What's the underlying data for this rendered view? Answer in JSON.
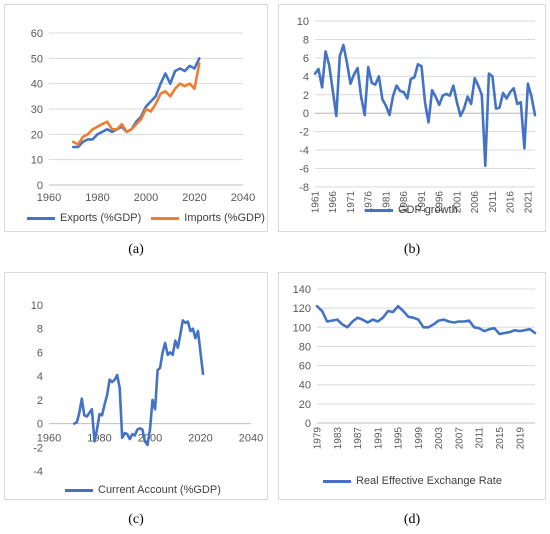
{
  "captions": [
    "(a)",
    "(b)",
    "(c)",
    "(d)"
  ],
  "colors": {
    "blue": "#4472c4",
    "orange": "#ed7d31",
    "grid": "#d9d9d9",
    "tick": "#595959"
  },
  "chart_data": [
    {
      "id": "a",
      "type": "line",
      "xlabel": "",
      "ylabel": "",
      "xlim": [
        1960,
        2040
      ],
      "ylim": [
        0,
        60
      ],
      "xticks": [
        1960,
        1980,
        2000,
        2020,
        2040
      ],
      "yticks": [
        0,
        10,
        20,
        30,
        40,
        50,
        60
      ],
      "grid": true,
      "legend_position": "bottom",
      "series": [
        {
          "name": "Exports (%GDP)",
          "color": "#4472c4",
          "x": [
            1970,
            1972,
            1974,
            1976,
            1978,
            1980,
            1982,
            1984,
            1986,
            1988,
            1990,
            1992,
            1994,
            1996,
            1998,
            2000,
            2002,
            2004,
            2006,
            2008,
            2010,
            2012,
            2014,
            2016,
            2018,
            2020,
            2022
          ],
          "y": [
            15,
            15,
            17,
            18,
            18,
            20,
            21,
            22,
            21,
            22,
            23,
            21,
            22,
            25,
            27,
            31,
            33,
            35,
            40,
            44,
            40,
            45,
            46,
            45,
            47,
            46,
            50
          ]
        },
        {
          "name": "Imports (%GDP)",
          "color": "#ed7d31",
          "x": [
            1970,
            1972,
            1974,
            1976,
            1978,
            1980,
            1982,
            1984,
            1986,
            1988,
            1990,
            1992,
            1994,
            1996,
            1998,
            2000,
            2002,
            2004,
            2006,
            2008,
            2010,
            2012,
            2014,
            2016,
            2018,
            2020,
            2022
          ],
          "y": [
            17,
            16,
            19,
            20,
            22,
            23,
            24,
            25,
            22,
            22,
            24,
            21,
            22,
            24,
            26,
            30,
            29,
            32,
            36,
            37,
            35,
            38,
            40,
            39,
            40,
            38,
            48
          ]
        }
      ]
    },
    {
      "id": "b",
      "type": "line",
      "xlabel": "",
      "ylabel": "",
      "ylim": [
        -8,
        10
      ],
      "yticks": [
        -8,
        -6,
        -4,
        -2,
        0,
        2,
        4,
        6,
        8,
        10
      ],
      "xtick_labels": [
        "1961",
        "1966",
        "1971",
        "1976",
        "1981",
        "1986",
        "1991",
        "1996",
        "2001",
        "2006",
        "2011",
        "2016",
        "2021"
      ],
      "grid": true,
      "legend_position": "bottom",
      "series": [
        {
          "name": "GDP growth",
          "color": "#4472c4",
          "x": [
            1961,
            1962,
            1963,
            1964,
            1965,
            1966,
            1967,
            1968,
            1969,
            1970,
            1971,
            1972,
            1973,
            1974,
            1975,
            1976,
            1977,
            1978,
            1979,
            1980,
            1981,
            1982,
            1983,
            1984,
            1985,
            1986,
            1987,
            1988,
            1989,
            1990,
            1991,
            1992,
            1993,
            1994,
            1995,
            1996,
            1997,
            1998,
            1999,
            2000,
            2001,
            2002,
            2003,
            2004,
            2005,
            2006,
            2007,
            2008,
            2009,
            2010,
            2011,
            2012,
            2013,
            2014,
            2015,
            2016,
            2017,
            2018,
            2019,
            2020,
            2021,
            2022,
            2023
          ],
          "y": [
            4.3,
            4.8,
            2.8,
            6.7,
            5.2,
            2.5,
            -0.3,
            6.2,
            7.4,
            5.5,
            3.2,
            4.2,
            4.9,
            1.8,
            -0.2,
            5.0,
            3.3,
            3.1,
            4.0,
            1.5,
            0.8,
            -0.2,
            1.9,
            3.0,
            2.4,
            2.3,
            1.6,
            3.7,
            3.9,
            5.3,
            5.1,
            1.2,
            -1.0,
            2.5,
            1.8,
            0.9,
            1.9,
            2.1,
            1.9,
            3.0,
            1.2,
            -0.3,
            0.5,
            1.8,
            1.0,
            3.8,
            3.0,
            2.0,
            -5.7,
            4.3,
            4.0,
            0.5,
            0.6,
            2.2,
            1.6,
            2.3,
            2.7,
            1.0,
            1.2,
            -3.8,
            3.2,
            1.8,
            -0.2
          ]
        }
      ]
    },
    {
      "id": "c",
      "type": "line",
      "xlabel": "",
      "ylabel": "",
      "xlim": [
        1960,
        2040
      ],
      "ylim": [
        -4,
        10
      ],
      "xticks": [
        1960,
        1980,
        2000,
        2020,
        2040
      ],
      "yticks": [
        -4,
        -2,
        0,
        2,
        4,
        6,
        8,
        10
      ],
      "grid": false,
      "legend_position": "bottom",
      "series": [
        {
          "name": "Current Account (%GDP)",
          "color": "#4472c4",
          "x": [
            1970,
            1971,
            1972,
            1973,
            1974,
            1975,
            1976,
            1977,
            1978,
            1979,
            1980,
            1981,
            1982,
            1983,
            1984,
            1985,
            1986,
            1987,
            1988,
            1989,
            1990,
            1991,
            1992,
            1993,
            1994,
            1995,
            1996,
            1997,
            1998,
            1999,
            2000,
            2001,
            2002,
            2003,
            2004,
            2005,
            2006,
            2007,
            2008,
            2009,
            2010,
            2011,
            2012,
            2013,
            2014,
            2015,
            2016,
            2017,
            2018,
            2019,
            2020,
            2021
          ],
          "y": [
            0.0,
            0.1,
            0.9,
            2.1,
            0.7,
            0.6,
            0.9,
            1.2,
            -1.5,
            -0.5,
            0.8,
            0.7,
            1.6,
            2.4,
            3.7,
            3.5,
            3.7,
            4.1,
            3.0,
            -1.2,
            -0.8,
            -0.9,
            -1.3,
            -0.9,
            -1.0,
            -0.5,
            -0.4,
            -0.5,
            -1.5,
            -1.8,
            -0.5,
            2.0,
            1.2,
            4.5,
            4.7,
            6.0,
            6.8,
            5.8,
            6.0,
            5.8,
            7.0,
            6.4,
            7.5,
            8.7,
            8.5,
            8.6,
            7.8,
            8.0,
            7.2,
            7.8,
            6.0,
            4.2
          ]
        }
      ]
    },
    {
      "id": "d",
      "type": "line",
      "xlabel": "",
      "ylabel": "",
      "ylim": [
        0,
        140
      ],
      "yticks": [
        0,
        20,
        40,
        60,
        80,
        100,
        120,
        140
      ],
      "xtick_labels": [
        "1979",
        "1983",
        "1987",
        "1991",
        "1995",
        "1999",
        "2003",
        "2007",
        "2011",
        "2015",
        "2019"
      ],
      "grid": true,
      "legend_position": "bottom",
      "series": [
        {
          "name": "Real Effective Exchange Rate",
          "color": "#4472c4",
          "x": [
            1979,
            1980,
            1981,
            1982,
            1983,
            1984,
            1985,
            1986,
            1987,
            1988,
            1989,
            1990,
            1991,
            1992,
            1993,
            1994,
            1995,
            1996,
            1997,
            1998,
            1999,
            2000,
            2001,
            2002,
            2003,
            2004,
            2005,
            2006,
            2007,
            2008,
            2009,
            2010,
            2011,
            2012,
            2013,
            2014,
            2015,
            2016,
            2017,
            2018,
            2019,
            2020,
            2021,
            2022
          ],
          "y": [
            122,
            117,
            106,
            107,
            108,
            103,
            100,
            106,
            110,
            108,
            105,
            108,
            106,
            110,
            117,
            116,
            122,
            117,
            111,
            110,
            108,
            100,
            100,
            103,
            107,
            108,
            106,
            105,
            106,
            106,
            107,
            100,
            99,
            96,
            98,
            99,
            93,
            94,
            95,
            97,
            96,
            97,
            98,
            94
          ]
        }
      ]
    }
  ]
}
